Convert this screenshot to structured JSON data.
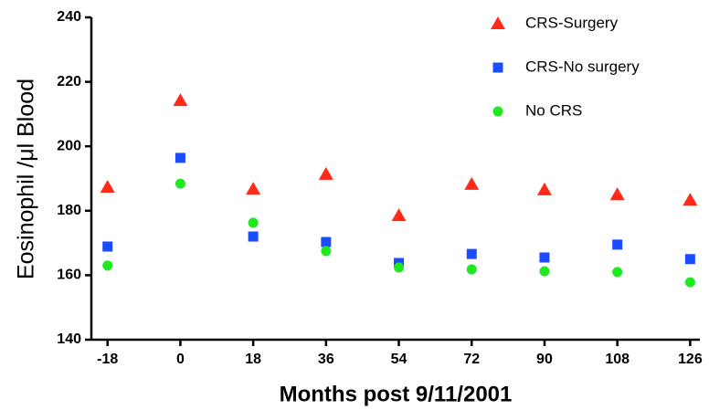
{
  "chart_data": {
    "type": "scatter",
    "x_label": "Months post 9/11/2001",
    "y_label": "Eosinophil /μl Blood",
    "x": [
      -18,
      0,
      18,
      36,
      54,
      72,
      90,
      108,
      126
    ],
    "series": [
      {
        "name": "CRS-Surgery",
        "color": "#ff2a1a",
        "marker": "triangle",
        "values": [
          187.3,
          214.2,
          186.7,
          191.3,
          178.5,
          188.2,
          186.5,
          185,
          183.3
        ]
      },
      {
        "name": "CRS-No surgery",
        "color": "#1a4dff",
        "marker": "square",
        "values": [
          168.9,
          196.4,
          172,
          170.3,
          163.8,
          166.6,
          165.5,
          169.5,
          165
        ]
      },
      {
        "name": "No CRS",
        "color": "#1ee81e",
        "marker": "circle",
        "values": [
          163,
          188.4,
          176.3,
          167.5,
          162.4,
          161.8,
          161.2,
          161,
          157.8
        ]
      }
    ],
    "xlim": [
      -22,
      128.4
    ],
    "xticks": [
      -18,
      0,
      18,
      36,
      54,
      72,
      90,
      108,
      126
    ],
    "ylim": [
      140,
      240
    ],
    "yticks": [
      140,
      160,
      180,
      200,
      220,
      240
    ],
    "grid": false
  }
}
